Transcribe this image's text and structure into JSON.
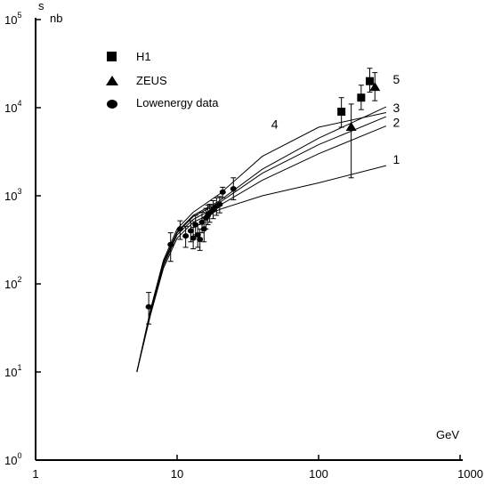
{
  "chart_data": {
    "type": "scatter",
    "ylabel_symbol": "s",
    "ylabel_unit": "nb",
    "xlabel_unit": "GeV",
    "x_scale": "log",
    "y_scale": "log",
    "xlim": [
      1,
      1000
    ],
    "ylim": [
      1,
      100000
    ],
    "x_ticks": [
      {
        "value": 1,
        "label": "1"
      },
      {
        "value": 10,
        "label": "10"
      },
      {
        "value": 100,
        "label": "100"
      },
      {
        "value": 1000,
        "label": "1000"
      }
    ],
    "y_ticks": [
      {
        "value": 1,
        "base": "10",
        "exp": "0"
      },
      {
        "value": 10,
        "base": "10",
        "exp": "1"
      },
      {
        "value": 100,
        "base": "10",
        "exp": "2"
      },
      {
        "value": 1000,
        "base": "10",
        "exp": "3"
      },
      {
        "value": 10000,
        "base": "10",
        "exp": "4"
      },
      {
        "value": 100000,
        "base": "10",
        "exp": "5"
      }
    ],
    "legend_position": "top-left",
    "legend": [
      {
        "marker": "square",
        "label": "H1"
      },
      {
        "marker": "triangle",
        "label": "ZEUS"
      },
      {
        "marker": "circle",
        "label": "Lowenergy data"
      }
    ],
    "series": [
      {
        "marker": "square",
        "points": [
          {
            "x": 145,
            "y": 9000,
            "lo": 6000,
            "hi": 13000
          },
          {
            "x": 200,
            "y": 13000,
            "lo": 9500,
            "hi": 18000
          },
          {
            "x": 230,
            "y": 20000,
            "lo": 15000,
            "hi": 28000
          }
        ]
      },
      {
        "marker": "triangle",
        "points": [
          {
            "x": 170,
            "y": 6000,
            "lo": 1600,
            "hi": 11000
          },
          {
            "x": 250,
            "y": 17000,
            "lo": 12000,
            "hi": 25000
          }
        ]
      },
      {
        "marker": "circle",
        "points": [
          {
            "x": 6.3,
            "y": 55,
            "lo": 35,
            "hi": 80
          },
          {
            "x": 9,
            "y": 280,
            "lo": 180,
            "hi": 380
          },
          {
            "x": 10.5,
            "y": 420,
            "lo": 320,
            "hi": 520
          },
          {
            "x": 11.5,
            "y": 350,
            "lo": 260,
            "hi": 450
          },
          {
            "x": 12.5,
            "y": 400,
            "lo": 300,
            "hi": 520
          },
          {
            "x": 13,
            "y": 330,
            "lo": 250,
            "hi": 440
          },
          {
            "x": 13.5,
            "y": 470,
            "lo": 360,
            "hi": 600
          },
          {
            "x": 14,
            "y": 360,
            "lo": 260,
            "hi": 470
          },
          {
            "x": 14.5,
            "y": 320,
            "lo": 240,
            "hi": 420
          },
          {
            "x": 15,
            "y": 500,
            "lo": 380,
            "hi": 650
          },
          {
            "x": 15.5,
            "y": 420,
            "lo": 300,
            "hi": 560
          },
          {
            "x": 16,
            "y": 560,
            "lo": 420,
            "hi": 720
          },
          {
            "x": 16.5,
            "y": 600,
            "lo": 470,
            "hi": 780
          },
          {
            "x": 17,
            "y": 640,
            "lo": 500,
            "hi": 800
          },
          {
            "x": 18,
            "y": 700,
            "lo": 550,
            "hi": 880
          },
          {
            "x": 19,
            "y": 760,
            "lo": 600,
            "hi": 950
          },
          {
            "x": 20,
            "y": 800,
            "lo": 640,
            "hi": 980
          },
          {
            "x": 21,
            "y": 1100,
            "lo": 950,
            "hi": 1250
          },
          {
            "x": 25,
            "y": 1200,
            "lo": 900,
            "hi": 1600
          }
        ]
      }
    ],
    "curves": [
      {
        "label": "1",
        "label_x": 290,
        "label_y": 2600,
        "points": [
          [
            5.2,
            10
          ],
          [
            6.5,
            45
          ],
          [
            8,
            150
          ],
          [
            10,
            330
          ],
          [
            13,
            500
          ],
          [
            20,
            700
          ],
          [
            40,
            1000
          ],
          [
            100,
            1400
          ],
          [
            300,
            2200
          ]
        ]
      },
      {
        "label": "2",
        "label_x": 290,
        "label_y": 6800,
        "points": [
          [
            5.2,
            10
          ],
          [
            6.5,
            48
          ],
          [
            8,
            160
          ],
          [
            10,
            360
          ],
          [
            13,
            540
          ],
          [
            20,
            780
          ],
          [
            40,
            1500
          ],
          [
            100,
            3000
          ],
          [
            300,
            6200
          ]
        ]
      },
      {
        "label": "3",
        "label_x": 290,
        "label_y": 10000,
        "points": [
          [
            5.2,
            10
          ],
          [
            6.5,
            50
          ],
          [
            8,
            170
          ],
          [
            10,
            380
          ],
          [
            13,
            580
          ],
          [
            20,
            840
          ],
          [
            40,
            1800
          ],
          [
            100,
            3800
          ],
          [
            300,
            7900
          ]
        ]
      },
      {
        "label": "4",
        "label_x": 40,
        "label_y": 6500,
        "points": [
          [
            5.2,
            10
          ],
          [
            6.5,
            52
          ],
          [
            8,
            185
          ],
          [
            10,
            420
          ],
          [
            13,
            650
          ],
          [
            20,
            1050
          ],
          [
            40,
            2800
          ],
          [
            100,
            6000
          ],
          [
            300,
            8800
          ]
        ]
      },
      {
        "label": "5",
        "label_x": 290,
        "label_y": 21000,
        "points": [
          [
            5.2,
            10
          ],
          [
            6.5,
            50
          ],
          [
            8,
            175
          ],
          [
            10,
            390
          ],
          [
            13,
            600
          ],
          [
            20,
            880
          ],
          [
            40,
            2000
          ],
          [
            100,
            4500
          ],
          [
            300,
            10200
          ]
        ]
      }
    ]
  }
}
